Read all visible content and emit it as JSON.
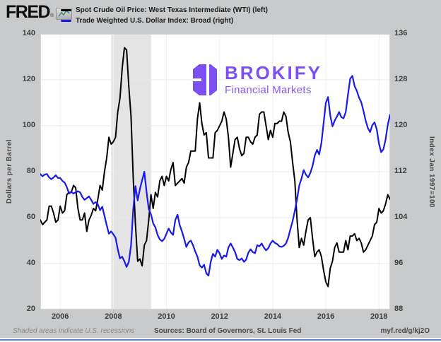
{
  "header": {
    "logo_text": "FRED",
    "logo_reg": "®",
    "legend": [
      {
        "label": "Spot Crude Oil Price: West Texas Intermediate (WTI) (left)",
        "color": "#000000"
      },
      {
        "label": "Trade Weighted U.S. Dollar Index: Broad (right)",
        "color": "#1a1ae8"
      }
    ]
  },
  "watermark": {
    "name": "BROKIFY",
    "tagline": "Financial Markets",
    "mark_color": "#7b4ff0",
    "name_color": "#7b4ff0",
    "tagline_color": "#8558f5"
  },
  "footer": {
    "note": "Shaded areas indicate U.S. recessions",
    "sources": "Sources: Board of Governors, St. Louis Fed",
    "link": "myf.red/g/kj2O"
  },
  "colors": {
    "page_bg": "#c9cacb",
    "plot_bg": "#ffffff",
    "recession_band": "#e4e4e4",
    "h_gridline": "#e9e9e9",
    "v_gridline": "#f0f0f0",
    "plot_border": "#d6d6d6",
    "tick_mark": "#a9b9d4",
    "fred_icon_line": "#2e8b7a"
  },
  "chart_data": {
    "type": "line",
    "frequency": "monthly",
    "x_start": 2005.25,
    "x_step": 0.0833,
    "x_min": 2005.25,
    "x_max": 2018.42,
    "x_ticks": [
      2006,
      2008,
      2010,
      2012,
      2014,
      2016,
      2018
    ],
    "grid": true,
    "legend_position": "top",
    "left_axis": {
      "label": "Dollars per Barrel",
      "min": 20,
      "max": 140,
      "ticks": [
        140,
        120,
        100,
        80,
        60,
        40,
        20
      ]
    },
    "right_axis": {
      "label": "Index Jan 1997=100",
      "min": 88,
      "max": 136,
      "ticks": [
        136,
        128,
        120,
        112,
        104,
        96,
        88
      ]
    },
    "recessions": [
      {
        "start": 2007.92,
        "end": 2009.42
      }
    ],
    "series": [
      {
        "name": "Spot Crude Oil Price: West Texas Intermediate (WTI)",
        "axis": "left",
        "color": "#000000",
        "width": 2,
        "values": [
          59,
          57,
          58,
          59,
          65,
          65,
          62,
          58,
          59,
          65,
          62,
          63,
          70,
          71,
          71,
          74,
          73,
          64,
          59,
          59,
          62,
          54,
          59,
          61,
          64,
          63,
          68,
          74,
          72,
          80,
          86,
          95,
          92,
          93,
          95,
          106,
          112,
          125,
          134,
          133,
          117,
          104,
          77,
          57,
          41,
          42,
          39,
          48,
          50,
          59,
          70,
          64,
          71,
          69,
          76,
          78,
          74,
          78,
          76,
          81,
          84,
          74,
          75,
          76,
          77,
          75,
          82,
          84,
          89,
          89,
          89,
          103,
          110,
          101,
          96,
          97,
          86,
          86,
          86,
          97,
          98,
          100,
          102,
          106,
          103,
          95,
          82,
          88,
          94,
          95,
          90,
          87,
          88,
          95,
          95,
          93,
          92,
          95,
          96,
          105,
          106,
          106,
          100,
          94,
          98,
          95,
          101,
          101,
          102,
          102,
          106,
          104,
          97,
          93,
          84,
          76,
          59,
          47,
          51,
          48,
          54,
          59,
          60,
          51,
          43,
          45,
          46,
          43,
          37,
          32,
          30,
          38,
          41,
          47,
          49,
          45,
          45,
          45,
          50,
          46,
          52,
          52,
          53,
          50,
          51,
          49,
          45,
          46,
          48,
          50,
          52,
          57,
          58,
          64,
          62,
          63,
          66,
          70,
          68
        ]
      },
      {
        "name": "Trade Weighted U.S. Dollar Index: Broad",
        "axis": "right",
        "color": "#1a1ae8",
        "width": 2.2,
        "values": [
          111.6,
          111.2,
          111.5,
          111.6,
          111.0,
          110.7,
          111.0,
          111.4,
          110.9,
          110.9,
          110.4,
          110.1,
          109.3,
          108.2,
          108.5,
          108.2,
          108.4,
          108.6,
          108.4,
          107.6,
          107.1,
          107.4,
          107.7,
          107.1,
          106.4,
          106.7,
          106.3,
          105.3,
          105.9,
          104.3,
          102.7,
          101.2,
          101.6,
          101.1,
          100.5,
          98.5,
          96.9,
          97.2,
          96.4,
          95.4,
          96.3,
          99.2,
          105.5,
          109.5,
          107.0,
          109.0,
          110.5,
          112.0,
          108.5,
          105.5,
          104.6,
          103.0,
          102.3,
          101.0,
          100.2,
          99.9,
          100.3,
          101.2,
          102.1,
          101.4,
          101.0,
          103.6,
          104.5,
          102.7,
          101.6,
          100.3,
          98.9,
          99.7,
          100.0,
          99.2,
          98.1,
          97.2,
          95.7,
          95.3,
          95.8,
          94.3,
          93.9,
          96.3,
          97.7,
          97.2,
          98.4,
          97.8,
          96.8,
          97.4,
          97.2,
          98.8,
          99.5,
          98.8,
          98.0,
          96.8,
          96.6,
          96.9,
          96.3,
          96.7,
          97.9,
          98.5,
          98.0,
          97.8,
          99.2,
          99.0,
          99.5,
          98.8,
          98.3,
          98.7,
          99.5,
          100.0,
          99.6,
          99.4,
          99.0,
          98.9,
          99.1,
          99.5,
          100.5,
          102.0,
          103.4,
          105.2,
          107.2,
          109.6,
          110.8,
          112.3,
          111.5,
          111.0,
          111.8,
          113.0,
          114.8,
          115.8,
          115.0,
          117.0,
          120.5,
          124.0,
          125.0,
          121.8,
          119.9,
          120.9,
          121.6,
          122.4,
          121.5,
          121.3,
          122.4,
          125.4,
          128.2,
          128.7,
          126.9,
          126.1,
          124.9,
          124.1,
          122.6,
          120.9,
          119.6,
          118.9,
          120.1,
          120.6,
          119.4,
          116.9,
          115.4,
          115.9,
          117.6,
          120.2,
          121.9
        ]
      }
    ]
  }
}
